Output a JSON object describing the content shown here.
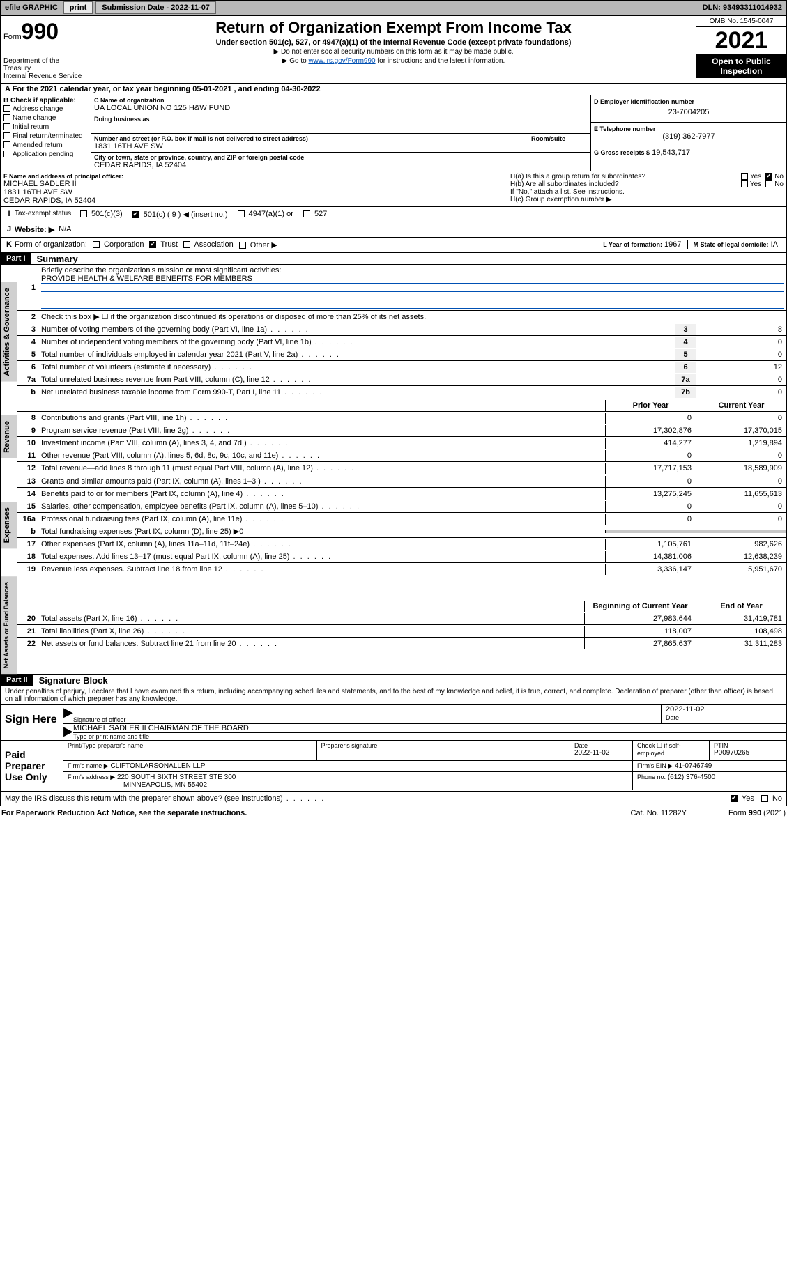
{
  "topbar": {
    "efile_label": "efile GRAPHIC",
    "print_btn": "print",
    "sub_date_label": "Submission Date - 2022-11-07",
    "dln_label": "DLN: 93493311014932"
  },
  "header": {
    "form_word": "Form",
    "form_num": "990",
    "dept": "Department of the Treasury",
    "irs": "Internal Revenue Service",
    "title": "Return of Organization Exempt From Income Tax",
    "sub": "Under section 501(c), 527, or 4947(a)(1) of the Internal Revenue Code (except private foundations)",
    "note1": "▶ Do not enter social security numbers on this form as it may be made public.",
    "note2_pre": "▶ Go to ",
    "note2_link": "www.irs.gov/Form990",
    "note2_post": " for instructions and the latest information.",
    "omb": "OMB No. 1545-0047",
    "year": "2021",
    "open_pub": "Open to Public Inspection"
  },
  "period": {
    "text": "For the 2021 calendar year, or tax year beginning 05-01-2021   , and ending 04-30-2022",
    "A": "A"
  },
  "sectionB": {
    "hdr": "B Check if applicable:",
    "items": [
      "Address change",
      "Name change",
      "Initial return",
      "Final return/terminated",
      "Amended return",
      "Application pending"
    ]
  },
  "sectionC": {
    "name_label": "C Name of organization",
    "name": "UA LOCAL UNION NO 125 H&W FUND",
    "dba_label": "Doing business as",
    "street_label": "Number and street (or P.O. box if mail is not delivered to street address)",
    "room_label": "Room/suite",
    "street": "1831 16TH AVE SW",
    "city_label": "City or town, state or province, country, and ZIP or foreign postal code",
    "city": "CEDAR RAPIDS, IA  52404"
  },
  "sectionD": {
    "label": "D Employer identification number",
    "val": "23-7004205"
  },
  "sectionE": {
    "label": "E Telephone number",
    "val": "(319) 362-7977"
  },
  "sectionG": {
    "label": "G Gross receipts $",
    "val": "19,543,717"
  },
  "sectionF": {
    "label": "F Name and address of principal officer:",
    "name": "MICHAEL SADLER II",
    "addr1": "1831 16TH AVE SW",
    "addr2": "CEDAR RAPIDS, IA  52404"
  },
  "sectionH": {
    "ha": "H(a)  Is this a group return for subordinates?",
    "hb": "H(b)  Are all subordinates included?",
    "hb_note": "If \"No,\" attach a list. See instructions.",
    "hc": "H(c)  Group exemption number ▶",
    "yes": "Yes",
    "no": "No"
  },
  "sectionI": {
    "label": "Tax-exempt status:",
    "o1": "501(c)(3)",
    "o2": "501(c) ( 9 ) ◀ (insert no.)",
    "o3": "4947(a)(1) or",
    "o4": "527",
    "I": "I"
  },
  "sectionJ": {
    "J": "J",
    "label": "Website: ▶",
    "val": "N/A"
  },
  "sectionK": {
    "K": "K",
    "label": "Form of organization:",
    "opts": [
      "Corporation",
      "Trust",
      "Association",
      "Other ▶"
    ]
  },
  "sectionL": {
    "label": "L Year of formation:",
    "val": "1967"
  },
  "sectionM": {
    "label": "M State of legal domicile:",
    "val": "IA"
  },
  "part1": {
    "hdr": "Part I",
    "title": "Summary",
    "l1_label": "Briefly describe the organization's mission or most significant activities:",
    "l1_val": "PROVIDE HEALTH & WELFARE BENEFITS FOR MEMBERS",
    "l2": "Check this box ▶ ☐  if the organization discontinued its operations or disposed of more than 25% of its net assets.",
    "vt_gov": "Activities & Governance",
    "vt_rev": "Revenue",
    "vt_exp": "Expenses",
    "vt_net": "Net Assets or Fund Balances",
    "prior": "Prior Year",
    "current": "Current Year",
    "boy": "Beginning of Current Year",
    "eoy": "End of Year",
    "rows_gov": [
      {
        "n": "3",
        "d": "Number of voting members of the governing body (Part VI, line 1a)",
        "box": "3",
        "v": "8"
      },
      {
        "n": "4",
        "d": "Number of independent voting members of the governing body (Part VI, line 1b)",
        "box": "4",
        "v": "0"
      },
      {
        "n": "5",
        "d": "Total number of individuals employed in calendar year 2021 (Part V, line 2a)",
        "box": "5",
        "v": "0"
      },
      {
        "n": "6",
        "d": "Total number of volunteers (estimate if necessary)",
        "box": "6",
        "v": "12"
      },
      {
        "n": "7a",
        "d": "Total unrelated business revenue from Part VIII, column (C), line 12",
        "box": "7a",
        "v": "0"
      },
      {
        "n": "b",
        "d": "Net unrelated business taxable income from Form 990-T, Part I, line 11",
        "box": "7b",
        "v": "0"
      }
    ],
    "rows_rev": [
      {
        "n": "8",
        "d": "Contributions and grants (Part VIII, line 1h)",
        "p": "0",
        "c": "0"
      },
      {
        "n": "9",
        "d": "Program service revenue (Part VIII, line 2g)",
        "p": "17,302,876",
        "c": "17,370,015"
      },
      {
        "n": "10",
        "d": "Investment income (Part VIII, column (A), lines 3, 4, and 7d )",
        "p": "414,277",
        "c": "1,219,894"
      },
      {
        "n": "11",
        "d": "Other revenue (Part VIII, column (A), lines 5, 6d, 8c, 9c, 10c, and 11e)",
        "p": "0",
        "c": "0"
      },
      {
        "n": "12",
        "d": "Total revenue—add lines 8 through 11 (must equal Part VIII, column (A), line 12)",
        "p": "17,717,153",
        "c": "18,589,909"
      }
    ],
    "rows_exp": [
      {
        "n": "13",
        "d": "Grants and similar amounts paid (Part IX, column (A), lines 1–3 )",
        "p": "0",
        "c": "0"
      },
      {
        "n": "14",
        "d": "Benefits paid to or for members (Part IX, column (A), line 4)",
        "p": "13,275,245",
        "c": "11,655,613"
      },
      {
        "n": "15",
        "d": "Salaries, other compensation, employee benefits (Part IX, column (A), lines 5–10)",
        "p": "0",
        "c": "0"
      },
      {
        "n": "16a",
        "d": "Professional fundraising fees (Part IX, column (A), line 11e)",
        "p": "0",
        "c": "0"
      }
    ],
    "row_16b": {
      "n": "b",
      "d": "Total fundraising expenses (Part IX, column (D), line 25) ▶0"
    },
    "rows_exp2": [
      {
        "n": "17",
        "d": "Other expenses (Part IX, column (A), lines 11a–11d, 11f–24e)",
        "p": "1,105,761",
        "c": "982,626"
      },
      {
        "n": "18",
        "d": "Total expenses. Add lines 13–17 (must equal Part IX, column (A), line 25)",
        "p": "14,381,006",
        "c": "12,638,239"
      },
      {
        "n": "19",
        "d": "Revenue less expenses. Subtract line 18 from line 12",
        "p": "3,336,147",
        "c": "5,951,670"
      }
    ],
    "rows_net": [
      {
        "n": "20",
        "d": "Total assets (Part X, line 16)",
        "p": "27,983,644",
        "c": "31,419,781"
      },
      {
        "n": "21",
        "d": "Total liabilities (Part X, line 26)",
        "p": "118,007",
        "c": "108,498"
      },
      {
        "n": "22",
        "d": "Net assets or fund balances. Subtract line 21 from line 20",
        "p": "27,865,637",
        "c": "31,311,283"
      }
    ]
  },
  "part2": {
    "hdr": "Part II",
    "title": "Signature Block",
    "decl": "Under penalties of perjury, I declare that I have examined this return, including accompanying schedules and statements, and to the best of my knowledge and belief, it is true, correct, and complete. Declaration of preparer (other than officer) is based on all information of which preparer has any knowledge.",
    "sign_here": "Sign Here",
    "sig_officer": "Signature of officer",
    "date": "Date",
    "sig_date": "2022-11-02",
    "officer_name": "MICHAEL SADLER II CHAIRMAN OF THE BOARD",
    "type_name": "Type or print name and title",
    "paid": "Paid Preparer Use Only",
    "prep_name_label": "Print/Type preparer's name",
    "prep_sig_label": "Preparer's signature",
    "prep_date": "2022-11-02",
    "check_if": "Check ☐ if self-employed",
    "ptin_label": "PTIN",
    "ptin": "P00970265",
    "firm_name_label": "Firm's name   ▶",
    "firm_name": "CLIFTONLARSONALLEN LLP",
    "firm_ein_label": "Firm's EIN ▶",
    "firm_ein": "41-0746749",
    "firm_addr_label": "Firm's address ▶",
    "firm_addr1": "220 SOUTH SIXTH STREET STE 300",
    "firm_addr2": "MINNEAPOLIS, MN  55402",
    "phone_label": "Phone no.",
    "phone": "(612) 376-4500",
    "discuss": "May the IRS discuss this return with the preparer shown above? (see instructions)"
  },
  "footer": {
    "paperwork": "For Paperwork Reduction Act Notice, see the separate instructions.",
    "cat": "Cat. No. 11282Y",
    "form": "Form 990 (2021)"
  }
}
